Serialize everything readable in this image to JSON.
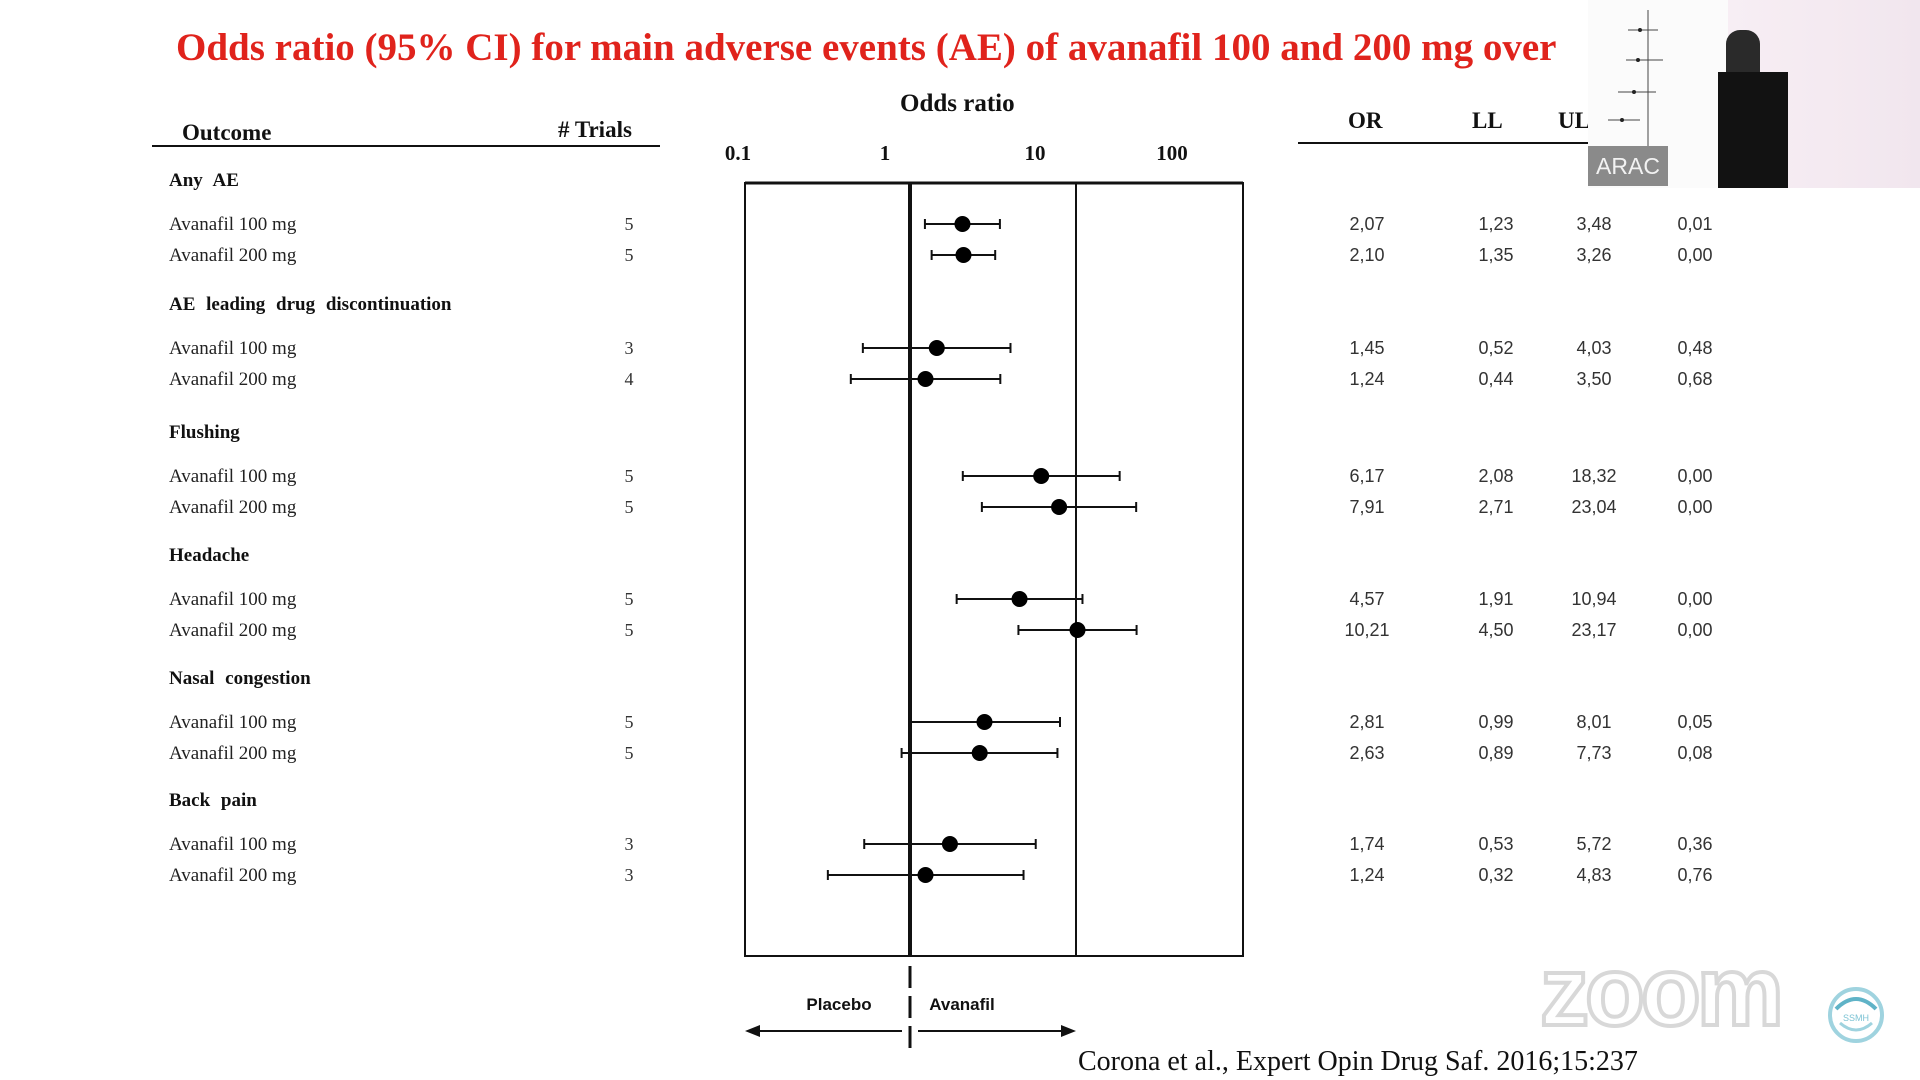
{
  "slide": {
    "title": "Odds ratio (95% CI) for main adverse events (AE) of avanafil 100 and 200 mg over",
    "headers": {
      "outcome": "Outcome",
      "trials": "# Trials",
      "plot_title": "Odds ratio",
      "or": "OR",
      "ll": "LL",
      "ul": "UL"
    },
    "groups": [
      {
        "name": "Any AE",
        "rows": [
          {
            "label": "Avanafil 100 mg",
            "trials": "5",
            "or": "2,07",
            "ll": "1,23",
            "ul": "3,48",
            "p": "0,01"
          },
          {
            "label": "Avanafil 200 mg",
            "trials": "5",
            "or": "2,10",
            "ll": "1,35",
            "ul": "3,26",
            "p": "0,00"
          }
        ]
      },
      {
        "name": "AE leading drug discontinuation",
        "rows": [
          {
            "label": "Avanafil 100 mg",
            "trials": "3",
            "or": "1,45",
            "ll": "0,52",
            "ul": "4,03",
            "p": "0,48"
          },
          {
            "label": "Avanafil 200 mg",
            "trials": "4",
            "or": "1,24",
            "ll": "0,44",
            "ul": "3,50",
            "p": "0,68"
          }
        ]
      },
      {
        "name": "Flushing",
        "rows": [
          {
            "label": "Avanafil 100 mg",
            "trials": "5",
            "or": "6,17",
            "ll": "2,08",
            "ul": "18,32",
            "p": "0,00"
          },
          {
            "label": "Avanafil 200 mg",
            "trials": "5",
            "or": "7,91",
            "ll": "2,71",
            "ul": "23,04",
            "p": "0,00"
          }
        ]
      },
      {
        "name": "Headache",
        "rows": [
          {
            "label": "Avanafil  100 mg",
            "trials": "5",
            "or": "4,57",
            "ll": "1,91",
            "ul": "10,94",
            "p": "0,00"
          },
          {
            "label": "Avanafil 200 mg",
            "trials": "5",
            "or": "10,21",
            "ll": "4,50",
            "ul": "23,17",
            "p": "0,00"
          }
        ]
      },
      {
        "name": "Nasal congestion",
        "rows": [
          {
            "label": "Avanafil 100 mg",
            "trials": "5",
            "or": "2,81",
            "ll": "0,99",
            "ul": "8,01",
            "p": "0,05"
          },
          {
            "label": "Avanafil 200 mg",
            "trials": "5",
            "or": "2,63",
            "ll": "0,89",
            "ul": "7,73",
            "p": "0,08"
          }
        ]
      },
      {
        "name": "Back pain",
        "rows": [
          {
            "label": "Avanafil 100 mg",
            "trials": "3",
            "or": "1,74",
            "ll": "0,53",
            "ul": "5,72",
            "p": "0,36"
          },
          {
            "label": "Avanafil 200 mg",
            "trials": "3",
            "or": "1,24",
            "ll": "0,32",
            "ul": "4,83",
            "p": "0,76"
          }
        ]
      }
    ],
    "axis": {
      "ticks": [
        "0.1",
        "1",
        "10",
        "100"
      ],
      "tick_values": [
        0.1,
        1,
        10,
        100
      ],
      "scale": "log",
      "xlim": [
        0.1,
        100
      ]
    },
    "direction": {
      "left": "Placebo",
      "right": "Avanafil"
    },
    "citation": "Corona et al., Expert Opin Drug Saf. 2016;15:237"
  },
  "chart_data": {
    "type": "scatter",
    "title": "Odds ratio",
    "xlabel": "",
    "ylabel": "",
    "x_scale": "log",
    "xlim": [
      0.1,
      100
    ],
    "reference_lines": [
      1,
      10
    ],
    "categories": [
      "Any AE - Avanafil 100 mg",
      "Any AE - Avanafil 200 mg",
      "AE leading drug discontinuation - Avanafil 100 mg",
      "AE leading drug discontinuation - Avanafil 200 mg",
      "Flushing - Avanafil 100 mg",
      "Flushing - Avanafil 200 mg",
      "Headache - Avanafil 100 mg",
      "Headache - Avanafil 200 mg",
      "Nasal congestion - Avanafil 100 mg",
      "Nasal congestion - Avanafil 200 mg",
      "Back pain - Avanafil 100 mg",
      "Back pain - Avanafil 200 mg"
    ],
    "x": [
      2.07,
      2.1,
      1.45,
      1.24,
      6.17,
      7.91,
      4.57,
      10.21,
      2.81,
      2.63,
      1.74,
      1.24
    ],
    "lower": [
      1.23,
      1.35,
      0.52,
      0.44,
      2.08,
      2.71,
      1.91,
      4.5,
      0.99,
      0.89,
      0.53,
      0.32
    ],
    "upper": [
      3.48,
      3.26,
      4.03,
      3.5,
      18.32,
      23.04,
      10.94,
      23.17,
      8.01,
      7.73,
      5.72,
      4.83
    ],
    "legend": "none",
    "grid": false
  },
  "overlays": {
    "thumbnail_label": "ARAC",
    "zoom_logo": "zoom",
    "ssmh_logo": "SSMH"
  },
  "colors": {
    "title": "#e0231c",
    "ink": "#111111"
  },
  "icons": [
    "zoom-logo-icon",
    "ssmh-logo-icon"
  ]
}
